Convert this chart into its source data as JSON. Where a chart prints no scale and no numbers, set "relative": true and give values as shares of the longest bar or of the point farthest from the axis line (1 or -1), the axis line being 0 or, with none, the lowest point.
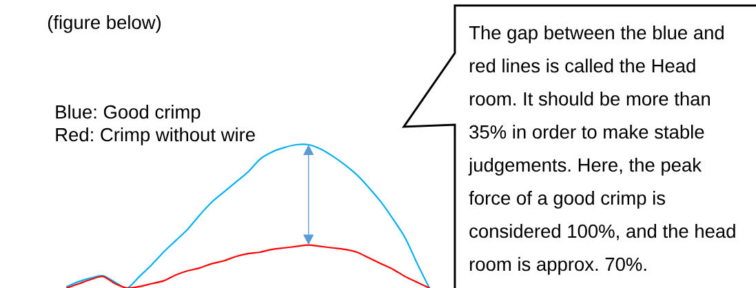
{
  "chart_data": {
    "type": "line",
    "relative": true,
    "categories": [
      null,
      null,
      null,
      null,
      null,
      null,
      null,
      null,
      null,
      null,
      null,
      null,
      null,
      null,
      null,
      null,
      null,
      null,
      null,
      null,
      null,
      null,
      null,
      null,
      null,
      null,
      null,
      null,
      null,
      null,
      null
    ],
    "series": [
      {
        "color": "#00b0f0",
        "values": [
          0.01,
          0.045,
          0.07,
          0.085,
          0.04,
          0,
          0.08,
          0.16,
          0.25,
          0.33,
          0.41,
          0.51,
          0.6,
          0.67,
          0.74,
          0.81,
          0.9,
          0.95,
          0.98,
          1.0,
          1.0,
          0.97,
          0.92,
          0.86,
          0.79,
          0.7,
          0.6,
          0.48,
          0.35,
          0.17,
          0
        ]
      },
      {
        "color": "#ff0000",
        "values": [
          0,
          0.03,
          0.06,
          0.08,
          0.03,
          0,
          0.01,
          0.03,
          0.05,
          0.09,
          0.12,
          0.14,
          0.17,
          0.19,
          0.22,
          0.24,
          0.25,
          0.27,
          0.28,
          0.29,
          0.3,
          0.29,
          0.28,
          0.27,
          0.25,
          0.21,
          0.17,
          0.13,
          0.08,
          0.04,
          0
        ]
      }
    ],
    "annotations": [
      "(figure below)",
      "Blue: Good crimp",
      "Red: Crimp without wire",
      "The gap between the blue and red lines is called the Head room. It should be more than 35% in order to make stable judgements. Here, the peak force of a good crimp is considered 100%, and the head room is approx. 70%."
    ]
  }
}
